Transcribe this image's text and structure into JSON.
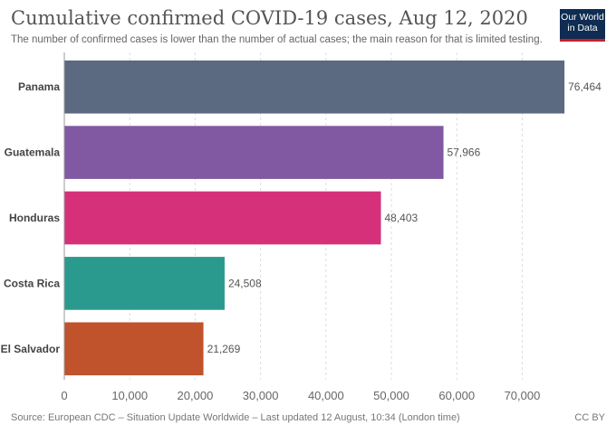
{
  "header": {
    "title": "Cumulative confirmed COVID-19 cases, Aug 12, 2020",
    "subtitle": "The number of confirmed cases is lower than the number of actual cases; the main reason for that is limited testing.",
    "logo_line1": "Our World",
    "logo_line2": "in Data"
  },
  "footer": {
    "source": "Source: European CDC – Situation Update Worldwide – Last updated 12 August, 10:34 (London time)",
    "license": "CC BY"
  },
  "chart_data": {
    "type": "bar",
    "orientation": "horizontal",
    "title": "Cumulative confirmed COVID-19 cases, Aug 12, 2020",
    "categories": [
      "Panama",
      "Guatemala",
      "Honduras",
      "Costa Rica",
      "El Salvador"
    ],
    "values": [
      76464,
      57966,
      48403,
      24508,
      21269
    ],
    "value_labels": [
      "76,464",
      "57,966",
      "48,403",
      "24,508",
      "21,269"
    ],
    "colors": [
      "#5b6a80",
      "#8159a3",
      "#d6307a",
      "#2a9a8f",
      "#c0532c"
    ],
    "xlim": [
      0,
      77000
    ],
    "x_ticks": [
      0,
      10000,
      20000,
      30000,
      40000,
      50000,
      60000,
      70000
    ],
    "x_tick_labels": [
      "0",
      "10,000",
      "20,000",
      "30,000",
      "40,000",
      "50,000",
      "60,000",
      "70,000"
    ],
    "grid": true
  }
}
